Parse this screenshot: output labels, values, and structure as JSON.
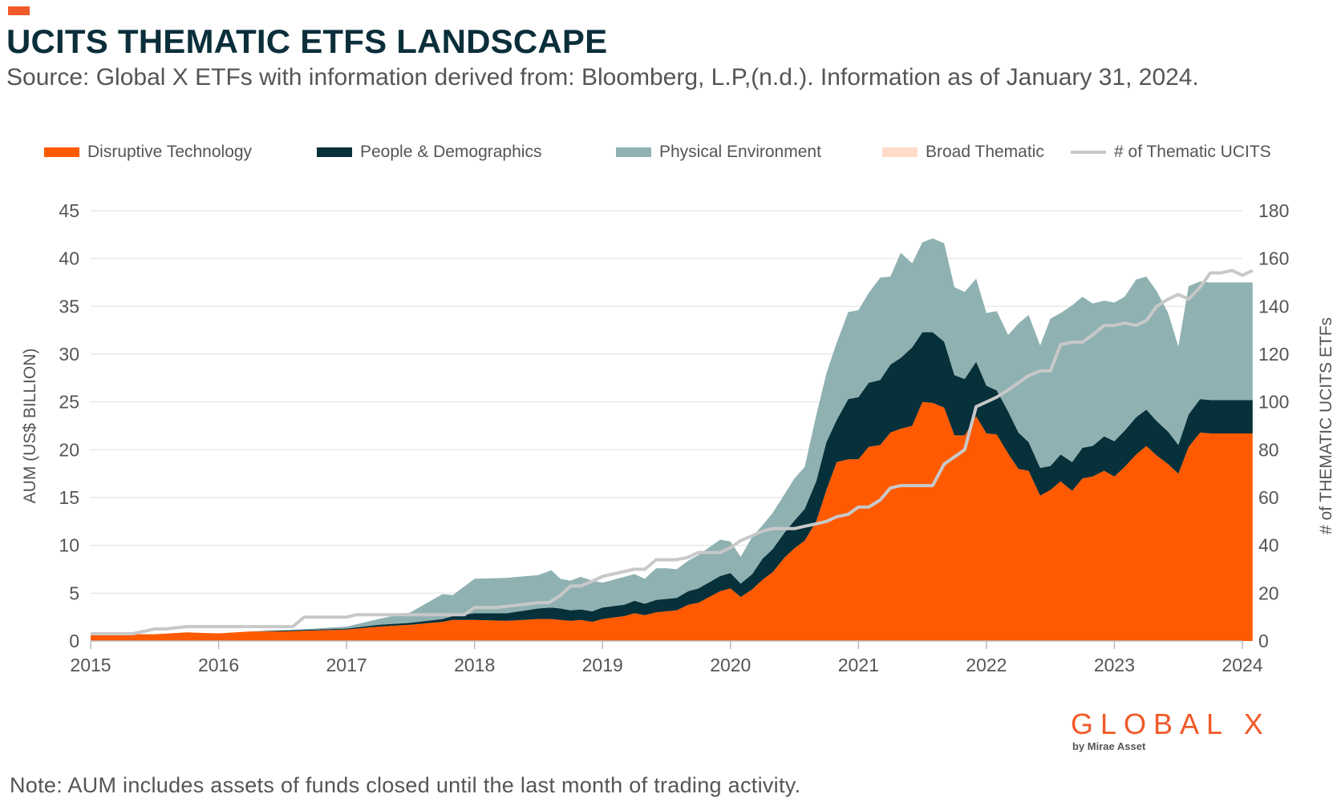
{
  "header": {
    "title": "UCITS THEMATIC ETFS LANDSCAPE",
    "subtitle": "Source: Global X ETFs with information derived from: Bloomberg, L.P,(n.d.). Information as of January 31, 2024."
  },
  "footer": {
    "note": "Note: AUM includes assets of funds closed until the last month of trading activity.",
    "logo_text": "GLOBAL X",
    "logo_sub": "by Mirae Asset"
  },
  "colors": {
    "accent": "#F05A28",
    "disruptive": "#FF5A00",
    "people": "#06303A",
    "physical": "#8FB1B1",
    "broad": "#FFDCC8",
    "count_line": "#C8C8C8",
    "title": "#0B2F3A",
    "grid": "#E3E3E3"
  },
  "chart_data": {
    "type": "area",
    "title": "UCITS THEMATIC ETFS LANDSCAPE",
    "ylabel": "AUM (US$ BILLION)",
    "y2label": "# of THEMATIC UCITS ETFs",
    "ylim": [
      0,
      45
    ],
    "y2lim": [
      0,
      180
    ],
    "yticks": [
      0,
      5,
      10,
      15,
      20,
      25,
      30,
      35,
      40,
      45
    ],
    "y2ticks": [
      0,
      20,
      40,
      60,
      80,
      100,
      120,
      140,
      160,
      180
    ],
    "x_range": [
      2015.0,
      2024.0
    ],
    "xticks": [
      "2015",
      "2016",
      "2017",
      "2018",
      "2019",
      "2020",
      "2021",
      "2022",
      "2023",
      "2024"
    ],
    "legend": [
      "Disruptive Technology",
      "People & Demographics",
      "Physical Environment",
      "Broad Thematic",
      "# of Thematic UCITS"
    ],
    "x": [
      2015.0,
      2015.25,
      2015.5,
      2015.75,
      2016.0,
      2016.25,
      2016.5,
      2016.75,
      2017.0,
      2017.25,
      2017.5,
      2017.75,
      2017.83,
      2018.0,
      2018.25,
      2018.5,
      2018.6,
      2018.67,
      2018.75,
      2018.83,
      2018.92,
      2019.0,
      2019.17,
      2019.25,
      2019.33,
      2019.42,
      2019.5,
      2019.58,
      2019.67,
      2019.75,
      2019.92,
      2020.0,
      2020.08,
      2020.17,
      2020.25,
      2020.33,
      2020.42,
      2020.5,
      2020.58,
      2020.67,
      2020.75,
      2020.83,
      2020.92,
      2021.0,
      2021.08,
      2021.17,
      2021.25,
      2021.33,
      2021.42,
      2021.5,
      2021.58,
      2021.67,
      2021.75,
      2021.83,
      2021.92,
      2022.0,
      2022.08,
      2022.17,
      2022.25,
      2022.33,
      2022.42,
      2022.5,
      2022.58,
      2022.67,
      2022.75,
      2022.83,
      2022.92,
      2023.0,
      2023.08,
      2023.17,
      2023.25,
      2023.33,
      2023.42,
      2023.5,
      2023.58,
      2023.67,
      2023.75,
      2023.83,
      2023.92,
      2024.0,
      2024.08
    ],
    "series": [
      {
        "name": "Disruptive Technology",
        "values": [
          0.6,
          0.7,
          0.7,
          0.9,
          0.8,
          1.0,
          1.0,
          1.1,
          1.2,
          1.5,
          1.7,
          2.0,
          2.2,
          2.2,
          2.1,
          2.3,
          2.3,
          2.2,
          2.1,
          2.2,
          2.0,
          2.3,
          2.6,
          2.9,
          2.7,
          3.0,
          3.1,
          3.2,
          3.8,
          4.0,
          5.2,
          5.5,
          4.6,
          5.4,
          6.4,
          7.2,
          8.7,
          9.7,
          10.5,
          12.5,
          15.8,
          18.7,
          19.0,
          19.0,
          20.3,
          20.5,
          21.8,
          22.2,
          22.5,
          25.0,
          24.9,
          24.4,
          21.5,
          21.5,
          23.5,
          21.7,
          21.6,
          19.6,
          18.0,
          17.8,
          15.2,
          15.8,
          16.7,
          15.7,
          17.0,
          17.2,
          17.8,
          17.2,
          18.2,
          19.5,
          20.4,
          19.4,
          18.5,
          17.5,
          20.3,
          21.8,
          21.7,
          21.7,
          21.7,
          21.7,
          21.7
        ]
      },
      {
        "name": "People & Demographics",
        "values": [
          0.0,
          0.0,
          0.0,
          0.0,
          0.0,
          0.0,
          0.1,
          0.1,
          0.1,
          0.2,
          0.2,
          0.3,
          0.4,
          0.7,
          0.8,
          1.1,
          1.2,
          1.2,
          1.1,
          1.1,
          1.1,
          1.2,
          1.2,
          1.3,
          1.2,
          1.3,
          1.3,
          1.3,
          1.4,
          1.5,
          1.6,
          1.6,
          1.4,
          1.6,
          2.2,
          2.4,
          2.6,
          2.9,
          3.3,
          4.2,
          5.0,
          4.4,
          6.3,
          6.5,
          6.7,
          6.8,
          7.1,
          7.4,
          8.2,
          7.3,
          7.4,
          6.9,
          6.3,
          5.9,
          5.7,
          5.0,
          4.6,
          4.4,
          3.8,
          3.0,
          2.9,
          2.5,
          2.8,
          3.0,
          3.2,
          3.2,
          3.6,
          3.7,
          3.8,
          3.9,
          3.8,
          3.6,
          3.4,
          3.0,
          3.4,
          3.5,
          3.5,
          3.5,
          3.5,
          3.5,
          3.5
        ]
      },
      {
        "name": "Physical Environment",
        "values": [
          0.0,
          0.0,
          0.0,
          0.0,
          0.0,
          0.0,
          0.0,
          0.1,
          0.2,
          0.6,
          1.1,
          2.6,
          2.2,
          3.6,
          3.7,
          3.5,
          3.9,
          3.1,
          3.1,
          3.4,
          3.2,
          2.6,
          2.9,
          2.8,
          2.6,
          3.3,
          3.2,
          3.0,
          3.2,
          3.5,
          3.8,
          3.3,
          2.8,
          3.9,
          3.5,
          3.8,
          4.0,
          4.4,
          4.4,
          6.9,
          7.2,
          8.1,
          9.1,
          9.1,
          9.4,
          10.7,
          9.2,
          11.0,
          8.8,
          9.4,
          9.8,
          10.3,
          9.2,
          9.1,
          8.7,
          7.6,
          8.3,
          8.0,
          11.4,
          13.3,
          12.8,
          15.4,
          14.8,
          16.4,
          15.8,
          14.9,
          14.2,
          14.5,
          14.0,
          14.4,
          13.9,
          13.6,
          12.4,
          10.3,
          13.4,
          12.3,
          12.3,
          12.3,
          12.3,
          12.3,
          12.3
        ]
      },
      {
        "name": "Broad Thematic",
        "values": [
          0.0,
          0.0,
          0.0,
          0.0,
          0.0,
          0.0,
          0.0,
          0.0,
          0.0,
          0.0,
          0.0,
          0.0,
          0.0,
          0.0,
          0.0,
          0.0,
          0.0,
          0.0,
          0.0,
          0.0,
          0.0,
          0.0,
          0.0,
          0.0,
          0.0,
          0.0,
          0.0,
          0.0,
          0.0,
          0.0,
          0.0,
          0.0,
          0.0,
          0.0,
          0.0,
          0.0,
          0.0,
          0.0,
          0.0,
          0.0,
          0.0,
          0.0,
          0.0,
          0.0,
          0.0,
          0.0,
          0.0,
          0.0,
          0.0,
          0.0,
          0.0,
          0.0,
          0.0,
          0.0,
          0.0,
          0.0,
          0.0,
          0.0,
          0.0,
          0.0,
          0.0,
          0.0,
          0.0,
          0.0,
          0.0,
          0.0,
          0.0,
          0.0,
          0.0,
          0.0,
          0.0,
          0.0,
          0.0,
          0.0,
          0.0,
          0.0,
          0.0,
          0.0,
          0.0,
          0.0,
          0.0
        ]
      }
    ],
    "line_series": {
      "name": "# of Thematic UCITS",
      "axis": "right",
      "x": [
        2015.0,
        2015.17,
        2015.33,
        2015.5,
        2015.58,
        2015.75,
        2016.0,
        2016.25,
        2016.5,
        2016.58,
        2016.67,
        2016.83,
        2017.0,
        2017.08,
        2017.25,
        2017.5,
        2017.75,
        2017.92,
        2018.0,
        2018.17,
        2018.33,
        2018.5,
        2018.58,
        2018.67,
        2018.75,
        2018.83,
        2018.92,
        2019.0,
        2019.08,
        2019.25,
        2019.33,
        2019.42,
        2019.5,
        2019.58,
        2019.67,
        2019.75,
        2019.92,
        2020.0,
        2020.08,
        2020.17,
        2020.25,
        2020.33,
        2020.42,
        2020.5,
        2020.58,
        2020.67,
        2020.75,
        2020.83,
        2020.92,
        2021.0,
        2021.08,
        2021.17,
        2021.25,
        2021.33,
        2021.42,
        2021.5,
        2021.58,
        2021.67,
        2021.75,
        2021.83,
        2021.92,
        2022.0,
        2022.08,
        2022.17,
        2022.25,
        2022.33,
        2022.42,
        2022.5,
        2022.58,
        2022.67,
        2022.75,
        2022.83,
        2022.92,
        2023.0,
        2023.08,
        2023.17,
        2023.25,
        2023.33,
        2023.42,
        2023.5,
        2023.58,
        2023.67,
        2023.75,
        2023.83,
        2023.92,
        2024.0,
        2024.08
      ],
      "values": [
        3,
        3,
        3,
        5,
        5,
        6,
        6,
        6,
        6,
        6,
        10,
        10,
        10,
        11,
        11,
        11,
        11,
        11,
        14,
        14,
        15,
        16,
        16,
        19,
        23,
        23,
        25,
        27,
        28,
        30,
        30,
        34,
        34,
        34,
        35,
        37,
        37,
        39,
        42,
        44,
        46,
        47,
        47,
        47,
        48,
        49,
        50,
        52,
        53,
        56,
        56,
        59,
        64,
        65,
        65,
        65,
        65,
        74,
        77,
        80,
        98,
        100,
        102,
        105,
        108,
        111,
        113,
        113,
        124,
        125,
        125,
        128,
        132,
        132,
        133,
        132,
        134,
        140,
        143,
        145,
        143,
        148,
        154,
        154,
        155,
        153,
        155
      ]
    }
  }
}
